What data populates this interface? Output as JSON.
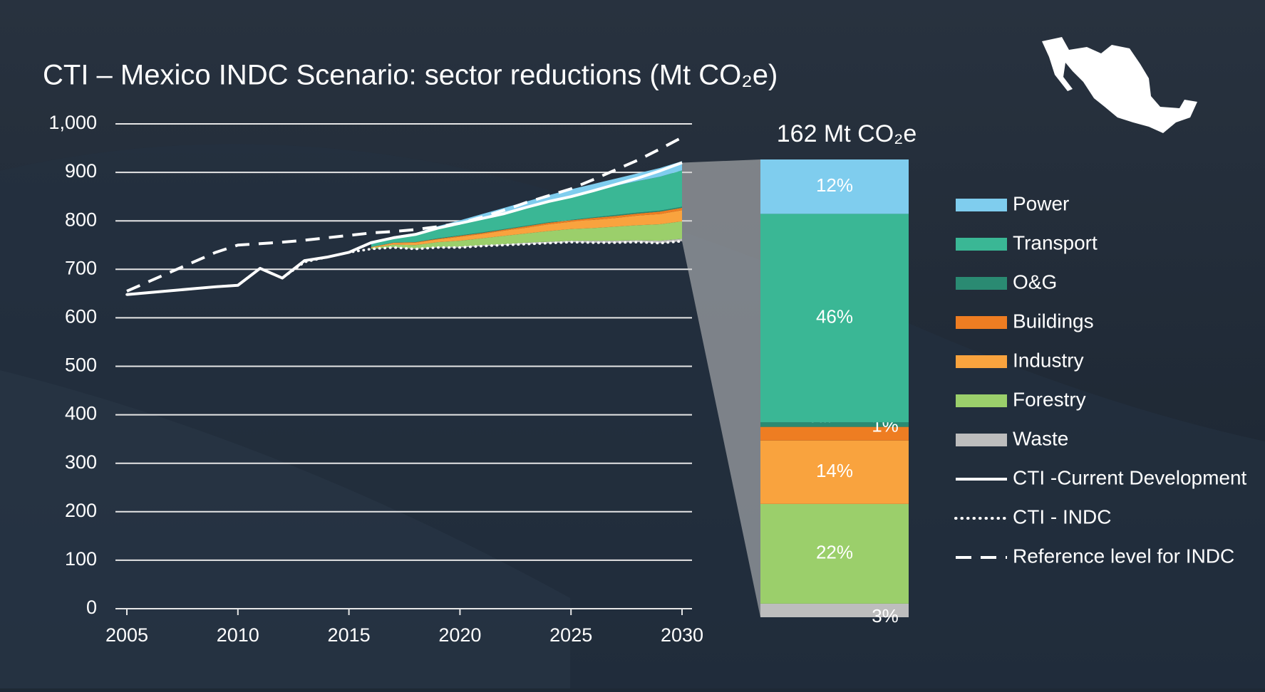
{
  "chart_data": {
    "type": "area",
    "title": "CTI – Mexico INDC Scenario: sector reductions (Mt CO₂e)",
    "x": [
      2005,
      2006,
      2007,
      2008,
      2009,
      2010,
      2011,
      2012,
      2013,
      2014,
      2015,
      2016,
      2017,
      2018,
      2019,
      2020,
      2021,
      2022,
      2023,
      2024,
      2025,
      2026,
      2027,
      2028,
      2029,
      2030
    ],
    "xlim": [
      2005,
      2030
    ],
    "xticks": [
      2005,
      2010,
      2015,
      2020,
      2025,
      2030
    ],
    "ylim": [
      0,
      1000
    ],
    "yticks": [
      0,
      100,
      200,
      300,
      400,
      500,
      600,
      700,
      800,
      900,
      {
        "value": 1000,
        "label": "1,000"
      }
    ],
    "grid": true,
    "series": [
      {
        "name": "Power",
        "kind": "area",
        "color": "#7fcdee",
        "values": [
          null,
          null,
          null,
          null,
          null,
          null,
          null,
          null,
          null,
          null,
          null,
          1,
          3,
          4,
          5,
          6,
          8,
          9,
          10,
          11,
          13,
          14,
          15,
          16,
          18,
          19
        ]
      },
      {
        "name": "Transport",
        "kind": "area",
        "color": "#3ab795",
        "values": [
          null,
          null,
          null,
          null,
          null,
          null,
          null,
          null,
          null,
          null,
          null,
          5,
          10,
          15,
          20,
          25,
          30,
          35,
          40,
          45,
          50,
          55,
          60,
          65,
          70,
          75
        ]
      },
      {
        "name": "O&G",
        "kind": "area",
        "color": "#2a8a72",
        "values": [
          null,
          null,
          null,
          null,
          null,
          null,
          null,
          null,
          null,
          null,
          null,
          0,
          0,
          0,
          1,
          1,
          1,
          1,
          1,
          1,
          1,
          1,
          2,
          2,
          2,
          2
        ]
      },
      {
        "name": "Buildings",
        "kind": "area",
        "color": "#ee7d22",
        "values": [
          null,
          null,
          null,
          null,
          null,
          null,
          null,
          null,
          null,
          null,
          null,
          0,
          1,
          1,
          1,
          2,
          2,
          2,
          3,
          3,
          3,
          4,
          4,
          4,
          5,
          5
        ]
      },
      {
        "name": "Industry",
        "kind": "area",
        "color": "#f9a33e",
        "values": [
          null,
          null,
          null,
          null,
          null,
          null,
          null,
          null,
          null,
          null,
          null,
          2,
          3,
          5,
          6,
          8,
          9,
          11,
          12,
          14,
          15,
          17,
          18,
          20,
          21,
          23
        ]
      },
      {
        "name": "Forestry",
        "kind": "area",
        "color": "#9bcf6b",
        "values": [
          null,
          null,
          null,
          null,
          null,
          null,
          null,
          null,
          null,
          null,
          null,
          2,
          5,
          7,
          10,
          12,
          14,
          17,
          19,
          22,
          24,
          26,
          29,
          31,
          34,
          36
        ]
      },
      {
        "name": "Waste",
        "kind": "area",
        "color": "#bdbdbd",
        "values": [
          null,
          null,
          null,
          null,
          null,
          null,
          null,
          null,
          null,
          null,
          null,
          0,
          1,
          1,
          1,
          2,
          2,
          2,
          3,
          3,
          3,
          4,
          4,
          4,
          5,
          5
        ]
      },
      {
        "name": "CTI -Current Development",
        "kind": "line",
        "dash": "solid",
        "color": "#ffffff",
        "values": [
          648,
          652,
          656,
          660,
          664,
          667,
          702,
          682,
          718,
          725,
          735,
          755,
          765,
          772,
          785,
          795,
          805,
          815,
          828,
          840,
          850,
          862,
          875,
          888,
          903,
          920
        ]
      },
      {
        "name": "CTI - INDC",
        "kind": "line",
        "dash": "dotted",
        "color": "#ffffff",
        "values": [
          648,
          652,
          656,
          660,
          664,
          667,
          702,
          682,
          715,
          725,
          735,
          742,
          745,
          742,
          745,
          745,
          748,
          750,
          752,
          754,
          756,
          755,
          755,
          756,
          754,
          758
        ]
      },
      {
        "name": "Reference level for INDC",
        "kind": "line",
        "dash": "dashed",
        "color": "#ffffff",
        "values": [
          655,
          675,
          695,
          715,
          735,
          750,
          753,
          756,
          760,
          765,
          770,
          775,
          778,
          782,
          788,
          795,
          808,
          822,
          838,
          852,
          866,
          885,
          905,
          925,
          948,
          972
        ]
      }
    ],
    "bar_title": "162 Mt CO₂e",
    "bar_values": [
      12,
      46,
      1,
      3,
      14,
      22,
      3
    ],
    "bar_value_labels": [
      "12%",
      "46%",
      "1%",
      "3%",
      "14%",
      "22%",
      "3%"
    ]
  }
}
